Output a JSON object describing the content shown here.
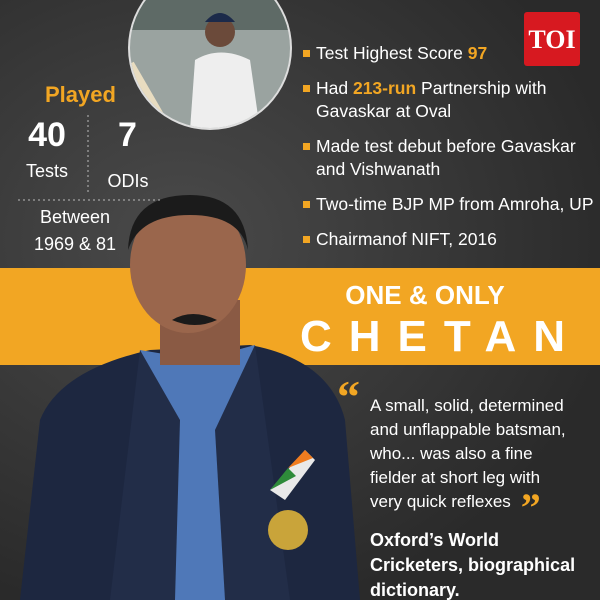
{
  "logo": "TOI",
  "stats": {
    "heading": "Played",
    "tests": {
      "value": 40,
      "label": "Tests"
    },
    "odis": {
      "value": 7,
      "label": "ODIs"
    },
    "period": [
      "Between",
      "1969 & 81"
    ]
  },
  "bullets": [
    {
      "parts": [
        {
          "text": "Test Highest Score "
        },
        {
          "text": "97",
          "bold": true
        }
      ]
    },
    {
      "parts": [
        {
          "text": "Had "
        },
        {
          "text": "213-run",
          "bold": true
        },
        {
          "text": " Partnership with Gavaskar at Oval"
        }
      ]
    },
    {
      "parts": [
        {
          "text": "Made test debut before Gavaskar and Vishwanath"
        }
      ]
    },
    {
      "parts": [
        {
          "text": "Two-time BJP MP from Amroha, UP"
        }
      ]
    },
    {
      "parts": [
        {
          "text": "Chairmanof NIFT, 2016"
        }
      ]
    }
  ],
  "banner": {
    "line1": "ONE & ONLY",
    "line2": "CHETAN"
  },
  "quote": {
    "text": "A small, solid, determined and unflappable batsman, who... was also a fine fielder at short leg with very quick reflexes",
    "source": "Oxford’s World Cricketers, biographical dictionary."
  }
}
